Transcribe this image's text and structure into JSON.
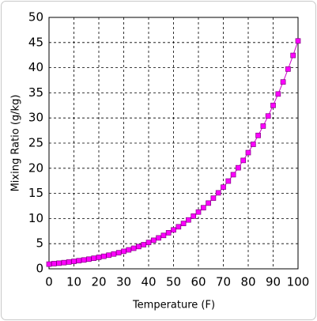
{
  "chart_data": {
    "type": "line",
    "x_label": "Temperature (F)",
    "y_label": "Mixing Ratio (g/kg)",
    "x": [
      0,
      2,
      4,
      6,
      8,
      10,
      12,
      14,
      16,
      18,
      20,
      22,
      24,
      26,
      28,
      30,
      32,
      34,
      36,
      38,
      40,
      42,
      44,
      46,
      48,
      50,
      52,
      54,
      56,
      58,
      60,
      62,
      64,
      66,
      68,
      70,
      72,
      74,
      76,
      78,
      80,
      82,
      84,
      86,
      88,
      90,
      92,
      94,
      96,
      98,
      100
    ],
    "series": [
      {
        "name": "Mixing Ratio",
        "color": "#cc00cc",
        "values": [
          0.93,
          1.03,
          1.12,
          1.23,
          1.35,
          1.48,
          1.62,
          1.76,
          1.92,
          2.1,
          2.29,
          2.49,
          2.71,
          2.95,
          3.2,
          3.48,
          3.77,
          4.09,
          4.43,
          4.8,
          5.24,
          5.68,
          6.15,
          6.64,
          7.17,
          7.74,
          8.36,
          9.02,
          9.72,
          10.48,
          11.29,
          12.15,
          13.07,
          14.06,
          15.11,
          16.24,
          17.45,
          18.72,
          20.1,
          21.56,
          23.11,
          24.76,
          26.53,
          28.39,
          30.39,
          32.5,
          34.77,
          37.16,
          39.72,
          42.44,
          45.32
        ]
      }
    ],
    "xlim": [
      0,
      100
    ],
    "xticks": [
      0,
      10,
      20,
      30,
      40,
      50,
      60,
      70,
      80,
      90,
      100
    ],
    "ylim": [
      0,
      50
    ],
    "yticks": [
      0,
      5,
      10,
      15,
      20,
      25,
      30,
      35,
      40,
      45,
      50
    ],
    "grid": true,
    "marker": "square",
    "marker_color": "#ff00ff"
  }
}
